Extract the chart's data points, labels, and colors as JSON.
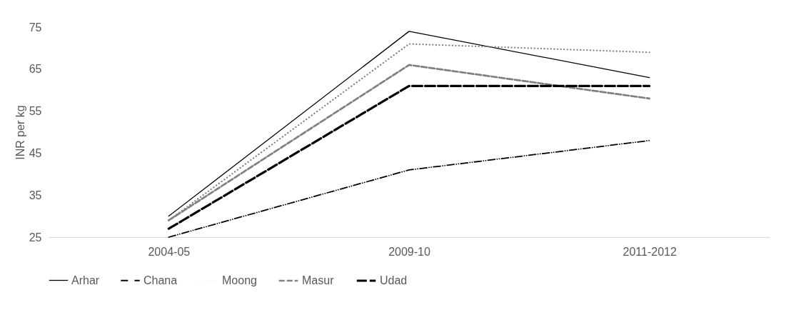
{
  "chart_data": {
    "type": "line",
    "ylabel": "INR per kg",
    "categories": [
      "2004-05",
      "2009-10",
      "2011-2012"
    ],
    "series": [
      {
        "name": "Arhar",
        "color": "#000000",
        "line_style": "solid",
        "values": [
          30,
          74,
          63
        ]
      },
      {
        "name": "Chana",
        "color": "#000000",
        "line_style": "dashdotdot",
        "values": [
          25,
          41,
          48
        ]
      },
      {
        "name": "Moong",
        "color": "#808080",
        "line_style": "dotted",
        "values": [
          29,
          71,
          69
        ]
      },
      {
        "name": "Masur",
        "color": "#808080",
        "line_style": "dashed",
        "values": [
          29,
          66,
          58
        ]
      },
      {
        "name": "Udad",
        "color": "#000000",
        "line_style": "longdashed",
        "values": [
          27,
          61,
          61
        ]
      }
    ],
    "ylim": [
      25,
      75
    ],
    "yticks": [
      25,
      35,
      45,
      55,
      65,
      75
    ],
    "grid": false,
    "legend": "bottom",
    "marker": "none"
  }
}
